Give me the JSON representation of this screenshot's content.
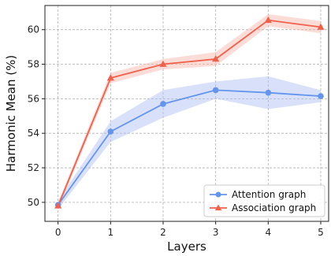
{
  "chart_data": {
    "type": "line",
    "x": [
      0,
      1,
      2,
      3,
      4,
      5
    ],
    "xlabel": "Layers",
    "ylabel": "Harmonic Mean (%)",
    "xlim": [
      -0.25,
      5.15
    ],
    "ylim": [
      48.9,
      61.4
    ],
    "xticks": [
      0,
      1,
      2,
      3,
      4,
      5
    ],
    "yticks": [
      50,
      52,
      54,
      56,
      58,
      60
    ],
    "grid": true,
    "legend_position": "bottom-right",
    "series": [
      {
        "name": "Attention graph",
        "marker": "circle",
        "color": "#6495ed",
        "band_color": "#aabdf3",
        "values": [
          49.85,
          54.1,
          55.7,
          56.5,
          56.35,
          56.15
        ],
        "band_lower": [
          49.6,
          53.5,
          54.9,
          56.0,
          55.4,
          55.8
        ],
        "band_upper": [
          50.1,
          54.7,
          56.5,
          57.0,
          57.3,
          56.5
        ]
      },
      {
        "name": "Association graph",
        "marker": "triangle",
        "color": "#f0604a",
        "band_color": "#f8b1a7",
        "values": [
          49.8,
          57.2,
          58.0,
          58.3,
          60.55,
          60.15
        ],
        "band_lower": [
          49.6,
          56.9,
          57.7,
          57.9,
          60.2,
          59.8
        ],
        "band_upper": [
          50.0,
          57.5,
          58.3,
          58.7,
          60.9,
          60.5
        ]
      }
    ]
  }
}
